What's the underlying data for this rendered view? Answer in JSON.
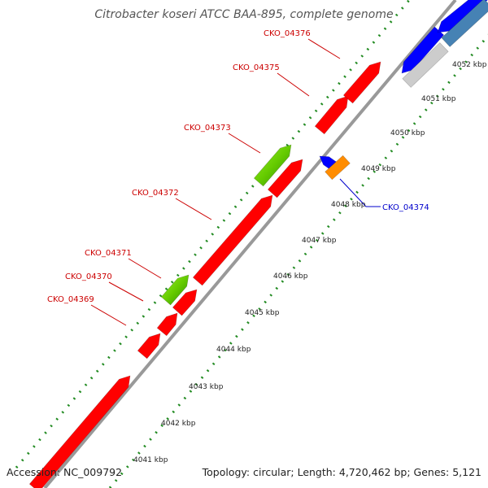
{
  "title": "Citrobacter koseri ATCC BAA-895, complete genome",
  "footer": {
    "accession": "Accession: NC_009792",
    "topology": "Topology: circular; Length: 4,720,462 bp; Genes: 5,121"
  },
  "colors": {
    "backbone": "#999999",
    "forward_gene": "#ff0000",
    "selected_gene": "#66cc00",
    "reverse_gene": "#0000ff",
    "reverse_gene_alt": "#4682b4",
    "pseudo_gene": "#cccccc",
    "orange_gene": "#ff8c00",
    "tick": "#228b22",
    "label_forward": "#cc0000",
    "label_reverse": "#0000cc"
  },
  "axis": {
    "ticks": [
      {
        "label": "4041 kbp"
      },
      {
        "label": "4042 kbp"
      },
      {
        "label": "4043 kbp"
      },
      {
        "label": "4044 kbp"
      },
      {
        "label": "4045 kbp"
      },
      {
        "label": "4046 kbp"
      },
      {
        "label": "4047 kbp"
      },
      {
        "label": "4048 kbp"
      },
      {
        "label": "4049 kbp"
      },
      {
        "label": "4050 kbp"
      },
      {
        "label": "4051 kbp"
      },
      {
        "label": "4052 kbp"
      }
    ]
  },
  "gene_labels": [
    {
      "text": "CKO_04376",
      "strand": "forward"
    },
    {
      "text": "CKO_04375",
      "strand": "forward"
    },
    {
      "text": "CKO_04373",
      "strand": "forward"
    },
    {
      "text": "CKO_04372",
      "strand": "forward"
    },
    {
      "text": "CKO_04371",
      "strand": "forward"
    },
    {
      "text": "CKO_04370",
      "strand": "forward"
    },
    {
      "text": "CKO_04369",
      "strand": "forward"
    },
    {
      "text": "CKO_04374",
      "strand": "reverse"
    }
  ]
}
